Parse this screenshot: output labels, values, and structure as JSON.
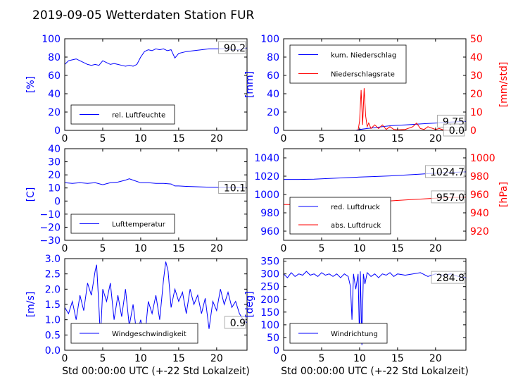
{
  "title": "2019-09-05 Wetterdaten Station FUR",
  "colors": {
    "primary": "#0000ff",
    "secondary": "#ff0000",
    "axis": "#000000"
  },
  "chart_data": [
    {
      "id": "humidity",
      "type": "line",
      "ylabel": "[%]",
      "ylim": [
        0,
        100
      ],
      "yticks": [
        0,
        20,
        40,
        60,
        80,
        100
      ],
      "xlim": [
        0,
        24
      ],
      "xticks": [
        0,
        5,
        10,
        15,
        20
      ],
      "xlabel": "",
      "series": [
        {
          "name": "rel. Luftfeuchte",
          "color": "#0000ff",
          "x": [
            0,
            0.5,
            1,
            1.5,
            2,
            2.5,
            3,
            3.5,
            4,
            4.5,
            5,
            5.5,
            6,
            6.5,
            7,
            7.5,
            8,
            8.5,
            9,
            9.5,
            10,
            10.5,
            11,
            11.5,
            12,
            12.5,
            13,
            13.5,
            14,
            14.5,
            15,
            16,
            17,
            18,
            19,
            20,
            21,
            22,
            23,
            24
          ],
          "y": [
            72,
            76,
            77,
            78,
            76,
            74,
            72,
            71,
            72,
            71,
            76,
            74,
            72,
            73,
            72,
            71,
            70,
            71,
            70,
            72,
            80,
            86,
            88,
            87,
            89,
            88,
            89,
            87,
            88,
            79,
            84,
            86,
            87,
            88,
            89,
            89,
            89,
            88,
            88,
            90
          ]
        }
      ],
      "last_value": "90.2",
      "legend": "lower-left"
    },
    {
      "id": "precip",
      "type": "line",
      "ylabel": "[mm]",
      "ylim": [
        0,
        100
      ],
      "yticks": [
        0,
        20,
        40,
        60,
        80,
        100
      ],
      "y2label": "[mm/std]",
      "y2lim": [
        0,
        50
      ],
      "y2ticks": [
        0,
        10,
        20,
        30,
        40,
        50
      ],
      "xlim": [
        0,
        24
      ],
      "xticks": [
        0,
        5,
        10,
        15,
        20
      ],
      "xlabel": "",
      "series": [
        {
          "name": "kum. Niederschlag",
          "color": "#0000ff",
          "axis": "left",
          "x": [
            0,
            9.5,
            10,
            11,
            12,
            13,
            14,
            15,
            16,
            17,
            18,
            19,
            20,
            21,
            22,
            23,
            24
          ],
          "y": [
            0,
            0,
            1,
            2,
            3,
            4,
            5,
            5.5,
            6,
            6.5,
            7,
            7.5,
            8,
            8.5,
            9,
            9.5,
            9.75
          ]
        },
        {
          "name": "Niederschlagsrate",
          "color": "#ff0000",
          "axis": "right",
          "x": [
            0,
            9.8,
            10,
            10.2,
            10.4,
            10.6,
            10.8,
            11,
            11.2,
            11.5,
            12,
            12.5,
            13,
            13.5,
            14,
            14.5,
            15,
            16,
            17,
            17.5,
            18,
            18.5,
            19,
            20,
            20.5,
            21,
            22,
            23,
            24
          ],
          "y": [
            0,
            0,
            5,
            22,
            3,
            23,
            8,
            2,
            4,
            1,
            3,
            1,
            3,
            0.5,
            2,
            0.5,
            0.3,
            0.5,
            2,
            4,
            1,
            0.5,
            2,
            0.5,
            1,
            0.3,
            0,
            0,
            0
          ]
        }
      ],
      "last_value": "9.75",
      "last_value2": "0.0",
      "legend": "top-left"
    },
    {
      "id": "temperature",
      "type": "line",
      "ylabel": "[C]",
      "ylim": [
        -30,
        40
      ],
      "yticks": [
        -30,
        -20,
        -10,
        0,
        10,
        20,
        30,
        40
      ],
      "xlim": [
        0,
        24
      ],
      "xticks": [
        0,
        5,
        10,
        15,
        20
      ],
      "xlabel": "",
      "series": [
        {
          "name": "Lufttemperatur",
          "color": "#0000ff",
          "x": [
            0,
            1,
            2,
            3,
            4,
            5,
            6,
            7,
            8,
            8.5,
            9,
            10,
            11,
            12,
            13,
            14,
            14.5,
            15,
            16,
            17,
            18,
            19,
            20,
            21,
            22,
            23,
            24
          ],
          "y": [
            14,
            13.5,
            14,
            13.5,
            14,
            12.5,
            14,
            14.5,
            16,
            17,
            16,
            14,
            14,
            13.5,
            13.5,
            13,
            11.5,
            11.5,
            11.2,
            11,
            10.8,
            10.6,
            10.5,
            10.4,
            10.3,
            10.2,
            10.1
          ]
        }
      ],
      "last_value": "10.1",
      "legend": "lower-left"
    },
    {
      "id": "pressure",
      "type": "line",
      "ylabel": "",
      "ylim": [
        950,
        1050
      ],
      "yticks": [
        960,
        980,
        1000,
        1020,
        1040
      ],
      "y2label": "[hPa]",
      "y2lim": [
        910,
        1010
      ],
      "y2ticks": [
        920,
        940,
        960,
        980,
        1000
      ],
      "xlim": [
        0,
        24
      ],
      "xticks": [
        0,
        5,
        10,
        15,
        20
      ],
      "xlabel": "",
      "series": [
        {
          "name": "red. Luftdruck",
          "color": "#0000ff",
          "axis": "left",
          "x": [
            0,
            2,
            4,
            6,
            8,
            10,
            12,
            14,
            16,
            18,
            20,
            22,
            24
          ],
          "y": [
            1016.5,
            1016.5,
            1016.8,
            1017.5,
            1018.2,
            1019,
            1019.6,
            1020.3,
            1021.2,
            1022.2,
            1023.2,
            1024.1,
            1024.7
          ]
        },
        {
          "name": "abs. Luftdruck",
          "color": "#ff0000",
          "axis": "right",
          "x": [
            0,
            2,
            4,
            6,
            8,
            10,
            12,
            14,
            16,
            18,
            20,
            22,
            24
          ],
          "y": [
            949,
            949,
            949.2,
            950,
            950.7,
            951.5,
            952.2,
            953,
            954,
            955,
            956,
            956.7,
            957
          ]
        }
      ],
      "last_value": "1024.7",
      "last_value2": "957.0",
      "legend": "lower-left"
    },
    {
      "id": "windspeed",
      "type": "line",
      "ylabel": "[m/s]",
      "ylim": [
        0,
        3
      ],
      "yticks": [
        0.0,
        0.5,
        1.0,
        1.5,
        2.0,
        2.5,
        3.0
      ],
      "xlim": [
        0,
        24
      ],
      "xticks": [
        0,
        5,
        10,
        15,
        20
      ],
      "xlabel": "Std 00:00:00 UTC (+-22 Std Lokalzeit)",
      "series": [
        {
          "name": "Windgeschwindigkeit",
          "color": "#0000ff",
          "x": [
            0,
            0.5,
            1,
            1.5,
            2,
            2.5,
            3,
            3.5,
            4,
            4.2,
            4.5,
            4.7,
            5,
            5.5,
            6,
            6.5,
            7,
            7.5,
            8,
            8.5,
            9,
            9.5,
            10,
            10.5,
            11,
            11.5,
            12,
            12.5,
            13,
            13.3,
            13.6,
            14,
            14.5,
            15,
            15.5,
            16,
            16.5,
            17,
            17.5,
            18,
            18.5,
            19,
            19.5,
            20,
            20.5,
            21,
            21.5,
            22,
            22.5,
            23,
            23.5,
            24
          ],
          "y": [
            1.4,
            1.2,
            1.6,
            1.0,
            1.8,
            1.3,
            2.2,
            1.8,
            2.6,
            2.8,
            1.4,
            0.4,
            2.0,
            1.6,
            2.2,
            1.0,
            1.8,
            1.1,
            2.0,
            0.8,
            1.5,
            0.5,
            1.0,
            0.3,
            1.6,
            1.2,
            1.8,
            1.0,
            2.3,
            2.9,
            2.6,
            1.4,
            2.0,
            1.6,
            1.9,
            1.2,
            2.0,
            1.5,
            1.8,
            1.2,
            1.7,
            0.7,
            1.6,
            1.3,
            2.0,
            1.5,
            1.9,
            1.4,
            1.6,
            1.2,
            1.0,
            0.9
          ]
        }
      ],
      "last_value": "0.9",
      "legend": "lower-left"
    },
    {
      "id": "winddir",
      "type": "line",
      "ylabel": "[deg]",
      "ylim": [
        0,
        360
      ],
      "yticks": [
        0,
        50,
        100,
        150,
        200,
        250,
        300,
        350
      ],
      "xlim": [
        0,
        24
      ],
      "xticks": [
        0,
        5,
        10,
        15,
        20
      ],
      "xlabel": "Std 00:00:00 UTC (+-22 Std Lokalzeit)",
      "series": [
        {
          "name": "Windrichtung",
          "color": "#0000ff",
          "x": [
            0,
            0.5,
            1,
            1.5,
            2,
            2.5,
            3,
            3.5,
            4,
            4.5,
            5,
            5.5,
            6,
            6.5,
            7,
            7.5,
            8,
            8.5,
            8.8,
            9,
            9.2,
            9.5,
            9.8,
            10,
            10.1,
            10.3,
            10.5,
            10.7,
            11,
            11.5,
            12,
            12.5,
            13,
            13.5,
            14,
            14.5,
            15,
            16,
            17,
            18,
            19,
            20,
            21,
            22,
            23,
            24
          ],
          "y": [
            300,
            285,
            305,
            290,
            300,
            295,
            310,
            295,
            300,
            290,
            305,
            295,
            300,
            290,
            300,
            285,
            300,
            290,
            250,
            120,
            300,
            240,
            300,
            30,
            310,
            20,
            300,
            260,
            305,
            290,
            300,
            285,
            300,
            295,
            305,
            290,
            300,
            295,
            300,
            305,
            290,
            300,
            295,
            300,
            290,
            285
          ]
        }
      ],
      "last_value": "284.8",
      "legend": "lower-left"
    }
  ]
}
